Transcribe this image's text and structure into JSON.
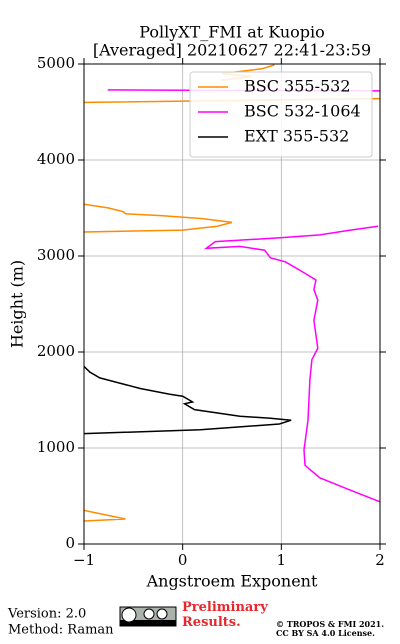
{
  "chart_data": {
    "type": "line",
    "title": "PollyXT_FMI at Kuopio",
    "subtitle": "[Averaged] 20210627 22:41-23:59",
    "x_label": "Angstroem Exponent",
    "y_label": "Height (m)",
    "xlim": [
      -1,
      2
    ],
    "ylim": [
      0,
      5000
    ],
    "xticks": [
      {
        "value": -1,
        "label": "−1"
      },
      0,
      1,
      2
    ],
    "yticks": [
      0,
      1000,
      2000,
      3000,
      4000,
      5000
    ],
    "grid": true,
    "legend": "upper right",
    "series": [
      {
        "name": "BSC 355-532",
        "color": "#ff8c00",
        "x": [
          -1,
          -0.58,
          -1,
          null,
          -1,
          -0.75,
          -0.6,
          -0.58,
          -0.2,
          0.2,
          0.5,
          0.35,
          0.0,
          -1,
          null,
          -1,
          2,
          null,
          0.4,
          0.7,
          0.4,
          0.8,
          0.93
        ],
        "y": [
          350,
          260,
          240,
          null,
          3540,
          3500,
          3460,
          3440,
          3420,
          3390,
          3350,
          3310,
          3270,
          3250,
          null,
          4600,
          4640,
          null,
          4830,
          4870,
          4900,
          4950,
          4990
        ]
      },
      {
        "name": "BSC 532-1064",
        "color": "#ff00ff",
        "x": [
          2.0,
          1.7,
          1.39,
          1.24,
          1.23,
          1.27,
          1.29,
          1.31,
          1.37,
          1.33,
          1.37,
          1.33,
          1.35,
          1.19,
          1.04,
          0.89,
          0.83,
          0.58,
          0.24,
          0.33,
          0.99,
          1.39,
          1.7,
          1.98,
          null,
          -0.76,
          2.0
        ],
        "y": [
          440,
          560,
          690,
          820,
          980,
          1290,
          1710,
          1920,
          2040,
          2330,
          2540,
          2650,
          2750,
          2850,
          2940,
          2980,
          3060,
          3100,
          3080,
          3150,
          3190,
          3220,
          3270,
          3310,
          null,
          4730,
          4720
        ]
      },
      {
        "name": "EXT 355-532",
        "color": "#000000",
        "x": [
          -1,
          -0.94,
          -0.84,
          -0.43,
          -0.13,
          0,
          0.1,
          0.02,
          0.12,
          0.58,
          0.89,
          1.1,
          0.98,
          0.18,
          -1
        ],
        "y": [
          1850,
          1790,
          1730,
          1620,
          1560,
          1540,
          1480,
          1460,
          1400,
          1330,
          1310,
          1290,
          1250,
          1190,
          1150
        ]
      }
    ]
  },
  "footer": {
    "version": "Version: 2.0",
    "method": "Method: Raman",
    "status": "Preliminary Results.",
    "license_1": "© TROPOS & FMI 2021.",
    "license_2": "CC BY SA 4.0 License."
  }
}
